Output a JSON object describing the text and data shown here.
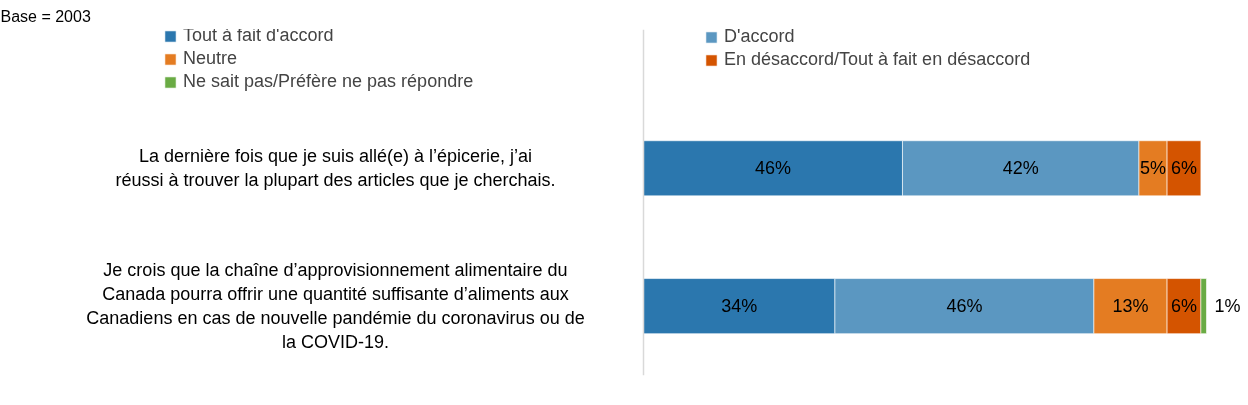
{
  "chart_data": {
    "type": "bar",
    "orientation": "horizontal",
    "stacked": true,
    "annotations": [
      "Base = 2003"
    ],
    "categories": [
      "La dernière fois que je suis allé(e) à l’épicerie, j’ai réussi à trouver la plupart des articles que je cherchais.",
      "Je crois que la chaîne d’approvisionnement alimentaire du Canada pourra offrir une quantité suffisante d’aliments aux Canadiens en cas de nouvelle pandémie du coronavirus ou de la COVID-19."
    ],
    "series": [
      {
        "name": "Tout à fait d'accord",
        "color": "#2b77ae",
        "values": [
          46,
          34
        ],
        "value_labels": [
          "46%",
          "34%"
        ]
      },
      {
        "name": "D'accord",
        "color": "#5b97c1",
        "values": [
          42,
          46
        ],
        "value_labels": [
          "42%",
          "46%"
        ]
      },
      {
        "name": "Neutre",
        "color": "#e47c22",
        "values": [
          5,
          13
        ],
        "value_labels": [
          "5%",
          "13%"
        ]
      },
      {
        "name": "En désaccord/Tout à fait en désaccord",
        "color": "#d45400",
        "values": [
          6,
          6
        ],
        "value_labels": [
          "6%",
          "6%"
        ]
      },
      {
        "name": "Ne sait pas/Préfère ne pas répondre",
        "color": "#6aab44",
        "values": [
          null,
          1
        ],
        "value_labels": [
          null,
          "1%"
        ]
      }
    ],
    "legend": "top",
    "grid": false,
    "tick_labels": "y"
  }
}
